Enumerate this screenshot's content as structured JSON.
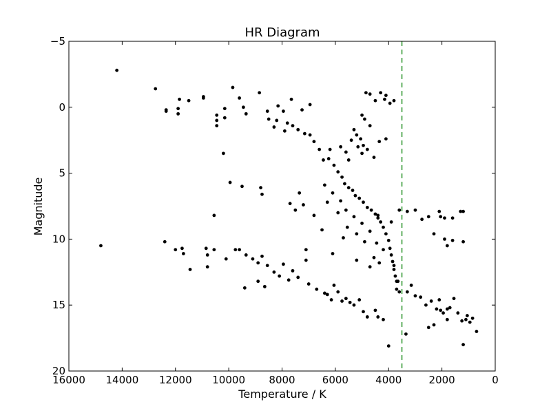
{
  "chart_data": {
    "type": "scatter",
    "title": "HR Diagram",
    "xlabel": "Temperature / K",
    "ylabel": "Magnitude",
    "xlim": [
      16000,
      0
    ],
    "ylim": [
      20,
      -5
    ],
    "x_axis_inverted": true,
    "y_axis_inverted": true,
    "x_ticks": [
      16000,
      14000,
      12000,
      10000,
      8000,
      6000,
      4000,
      2000,
      0
    ],
    "x_tick_labels": [
      "16000",
      "14000",
      "12000",
      "10000",
      "8000",
      "6000",
      "4000",
      "2000",
      "0"
    ],
    "y_ticks": [
      -5,
      0,
      5,
      10,
      15,
      20
    ],
    "y_tick_labels": [
      "−5",
      "0",
      "5",
      "10",
      "15",
      "20"
    ],
    "grid": false,
    "marker_color": "#000000",
    "reference_line": {
      "orientation": "vertical",
      "x": 3500,
      "style": "dashed",
      "color": "#008000"
    },
    "series": [
      {
        "values_note_excluded": true,
        "points": [
          [
            14200,
            -2.8
          ],
          [
            12750,
            -1.4
          ],
          [
            12350,
            0.2
          ],
          [
            12350,
            0.3
          ],
          [
            11900,
            0.1
          ],
          [
            11900,
            0.5
          ],
          [
            11850,
            -0.6
          ],
          [
            11500,
            -0.5
          ],
          [
            10950,
            -0.7
          ],
          [
            10950,
            -0.8
          ],
          [
            10450,
            1.0
          ],
          [
            10450,
            0.6
          ],
          [
            10450,
            1.4
          ],
          [
            10150,
            0.1
          ],
          [
            10150,
            0.8
          ],
          [
            9850,
            -1.5
          ],
          [
            9600,
            -0.7
          ],
          [
            9450,
            0.0
          ],
          [
            9350,
            0.5
          ],
          [
            8850,
            -1.1
          ],
          [
            8550,
            0.3
          ],
          [
            8150,
            -0.1
          ],
          [
            7950,
            0.3
          ],
          [
            7650,
            -0.6
          ],
          [
            7250,
            0.2
          ],
          [
            6950,
            -0.2
          ],
          [
            10200,
            3.5
          ],
          [
            9950,
            5.7
          ],
          [
            9500,
            6.0
          ],
          [
            8750,
            6.6
          ],
          [
            10550,
            8.2
          ],
          [
            9750,
            10.8
          ],
          [
            7700,
            7.3
          ],
          [
            7500,
            7.8
          ],
          [
            7200,
            7.4
          ],
          [
            6800,
            8.2
          ],
          [
            8800,
            6.1
          ],
          [
            7350,
            6.5
          ],
          [
            14800,
            10.5
          ],
          [
            12400,
            10.2
          ],
          [
            12000,
            10.8
          ],
          [
            11750,
            10.7
          ],
          [
            11700,
            11.1
          ],
          [
            11450,
            12.3
          ],
          [
            10850,
            10.7
          ],
          [
            10800,
            11.2
          ],
          [
            10800,
            12.1
          ],
          [
            10550,
            10.8
          ],
          [
            10100,
            11.5
          ],
          [
            9600,
            10.8
          ],
          [
            9350,
            11.2
          ],
          [
            9100,
            11.5
          ],
          [
            8900,
            11.8
          ],
          [
            8750,
            11.3
          ],
          [
            8550,
            12.0
          ],
          [
            9400,
            13.7
          ],
          [
            8900,
            13.2
          ],
          [
            8650,
            13.6
          ],
          [
            8300,
            12.5
          ],
          [
            8100,
            12.8
          ],
          [
            7950,
            11.9
          ],
          [
            7750,
            13.1
          ],
          [
            7600,
            12.4
          ],
          [
            7400,
            12.9
          ],
          [
            7100,
            11.6
          ],
          [
            7000,
            13.4
          ],
          [
            6700,
            13.8
          ],
          [
            6400,
            14.1
          ],
          [
            6300,
            14.2
          ],
          [
            6150,
            14.6
          ],
          [
            6050,
            13.5
          ],
          [
            5900,
            14.0
          ],
          [
            5750,
            14.7
          ],
          [
            5600,
            14.5
          ],
          [
            5450,
            14.8
          ],
          [
            5300,
            15.0
          ],
          [
            5100,
            14.6
          ],
          [
            4950,
            15.5
          ],
          [
            4800,
            15.9
          ],
          [
            4500,
            15.4
          ],
          [
            4400,
            15.9
          ],
          [
            4200,
            16.1
          ],
          [
            4000,
            18.1
          ],
          [
            3350,
            17.2
          ],
          [
            3800,
            12.0
          ],
          [
            3700,
            13.8
          ],
          [
            3650,
            13.2
          ],
          [
            3600,
            14.0
          ],
          [
            3300,
            14.0
          ],
          [
            3150,
            13.5
          ],
          [
            3000,
            14.3
          ],
          [
            2800,
            14.4
          ],
          [
            2600,
            15.0
          ],
          [
            2400,
            14.7
          ],
          [
            2200,
            15.3
          ],
          [
            2100,
            14.6
          ],
          [
            1950,
            15.6
          ],
          [
            1800,
            16.1
          ],
          [
            1700,
            15.2
          ],
          [
            1550,
            14.5
          ],
          [
            1400,
            15.6
          ],
          [
            1250,
            16.2
          ],
          [
            1100,
            16.1
          ],
          [
            1050,
            15.8
          ],
          [
            950,
            16.3
          ],
          [
            850,
            16.0
          ],
          [
            700,
            17.0
          ],
          [
            1200,
            18.0
          ],
          [
            2500,
            16.7
          ],
          [
            2300,
            16.5
          ],
          [
            1800,
            15.3
          ],
          [
            2050,
            15.4
          ],
          [
            2100,
            7.9
          ],
          [
            2050,
            8.3
          ],
          [
            1900,
            8.4
          ],
          [
            1300,
            7.9
          ],
          [
            1200,
            7.9
          ],
          [
            1600,
            8.4
          ],
          [
            1900,
            10.0
          ],
          [
            2300,
            9.6
          ],
          [
            1800,
            10.5
          ],
          [
            1600,
            10.1
          ],
          [
            1200,
            10.2
          ],
          [
            3900,
            8.7
          ],
          [
            4400,
            8.2
          ],
          [
            3600,
            7.8
          ],
          [
            3300,
            7.9
          ],
          [
            3000,
            7.8
          ],
          [
            2750,
            8.5
          ],
          [
            2500,
            8.3
          ],
          [
            4850,
            -1.1
          ],
          [
            4700,
            -1.0
          ],
          [
            4500,
            -0.5
          ],
          [
            4300,
            -1.1
          ],
          [
            4150,
            -0.6
          ],
          [
            4100,
            -0.9
          ],
          [
            3950,
            -0.3
          ],
          [
            3800,
            -0.5
          ],
          [
            5000,
            0.6
          ],
          [
            4900,
            0.9
          ],
          [
            4700,
            1.4
          ],
          [
            5300,
            1.7
          ],
          [
            5200,
            2.1
          ],
          [
            5050,
            2.4
          ],
          [
            4950,
            2.9
          ],
          [
            4800,
            3.2
          ],
          [
            4550,
            3.8
          ],
          [
            4350,
            2.6
          ],
          [
            4100,
            2.4
          ],
          [
            5600,
            3.4
          ],
          [
            5500,
            4.0
          ],
          [
            5800,
            3.0
          ],
          [
            6200,
            3.2
          ],
          [
            5400,
            2.5
          ],
          [
            5150,
            3.0
          ],
          [
            5000,
            3.5
          ],
          [
            6950,
            2.1
          ],
          [
            6800,
            2.6
          ],
          [
            6600,
            3.2
          ],
          [
            6450,
            4.0
          ],
          [
            6250,
            3.9
          ],
          [
            6050,
            4.4
          ],
          [
            5900,
            4.9
          ],
          [
            5750,
            5.3
          ],
          [
            5650,
            5.8
          ],
          [
            5500,
            6.1
          ],
          [
            5350,
            6.3
          ],
          [
            5250,
            6.7
          ],
          [
            5100,
            6.9
          ],
          [
            4950,
            7.2
          ],
          [
            4800,
            7.6
          ],
          [
            4650,
            7.8
          ],
          [
            4500,
            8.1
          ],
          [
            4400,
            8.4
          ],
          [
            4300,
            8.7
          ],
          [
            4200,
            9.1
          ],
          [
            4100,
            9.6
          ],
          [
            4000,
            10.1
          ],
          [
            3950,
            10.7
          ],
          [
            3900,
            11.2
          ],
          [
            3850,
            11.7
          ],
          [
            3800,
            12.3
          ],
          [
            3750,
            12.8
          ],
          [
            3700,
            13.2
          ],
          [
            7400,
            1.7
          ],
          [
            7150,
            2.0
          ],
          [
            7600,
            1.4
          ],
          [
            7800,
            1.2
          ],
          [
            8200,
            1.0
          ],
          [
            8500,
            0.9
          ],
          [
            7900,
            1.8
          ],
          [
            8300,
            1.5
          ],
          [
            6400,
            5.9
          ],
          [
            6100,
            6.5
          ],
          [
            5800,
            7.1
          ],
          [
            5600,
            7.8
          ],
          [
            5300,
            8.3
          ],
          [
            5000,
            8.8
          ],
          [
            4700,
            9.4
          ],
          [
            4450,
            10.3
          ],
          [
            4200,
            10.8
          ],
          [
            6300,
            7.2
          ],
          [
            5900,
            8.0
          ],
          [
            5550,
            9.1
          ],
          [
            5200,
            9.6
          ],
          [
            4900,
            10.2
          ],
          [
            5700,
            9.9
          ],
          [
            6500,
            9.3
          ],
          [
            4550,
            11.4
          ],
          [
            4350,
            11.8
          ],
          [
            4700,
            12.1
          ],
          [
            5200,
            11.6
          ],
          [
            6100,
            11.1
          ],
          [
            7100,
            10.8
          ]
        ]
      }
    ]
  }
}
